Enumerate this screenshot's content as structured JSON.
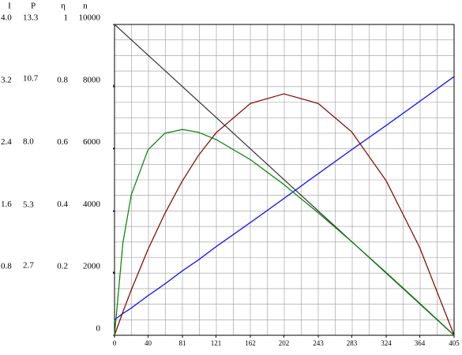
{
  "chart_data": {
    "type": "line",
    "x": [
      0,
      10,
      20,
      40,
      60,
      81,
      100,
      121,
      162,
      202,
      243,
      283,
      324,
      364,
      405
    ],
    "xlim": [
      0,
      405
    ],
    "xticks": [
      0,
      40,
      81,
      121,
      162,
      202,
      243,
      283,
      324,
      364,
      405
    ],
    "grid": true,
    "y_axes": [
      {
        "label": "I",
        "ylim": [
          0,
          4
        ],
        "yticks": [
          0.8,
          1.6,
          2.4,
          3.2,
          {
            "value": 4,
            "label": "4.0"
          }
        ]
      },
      {
        "label": "P",
        "ylim": [
          0,
          13.3
        ],
        "yticks": [
          2.7,
          5.3,
          {
            "value": 8,
            "label": "8.0"
          },
          10.7,
          13.3
        ]
      },
      {
        "label": "η",
        "ylim": [
          0,
          1
        ],
        "yticks": [
          0.2,
          0.4,
          0.6,
          0.8,
          1
        ]
      },
      {
        "label": "n",
        "ylim": [
          0,
          10000
        ],
        "yticks": [
          0,
          2000,
          4000,
          6000,
          8000,
          10000
        ]
      }
    ],
    "series": [
      {
        "axis": "n",
        "color": "#333333",
        "values": [
          10000,
          9753,
          9506,
          9012,
          8519,
          8000,
          7531,
          7012,
          6000,
          5012,
          4000,
          3012,
          2000,
          1012,
          0
        ]
      },
      {
        "axis": "I",
        "color": "#0000ff",
        "values": [
          0.2,
          0.28,
          0.35,
          0.51,
          0.66,
          0.83,
          0.97,
          1.14,
          1.45,
          1.76,
          2.08,
          2.39,
          2.7,
          3.01,
          3.33
        ]
      },
      {
        "axis": "P",
        "color": "#800000",
        "values": [
          0,
          1.0,
          1.94,
          3.68,
          5.21,
          6.61,
          7.69,
          8.66,
          9.92,
          10.33,
          9.92,
          8.7,
          6.61,
          3.75,
          0
        ]
      },
      {
        "axis": "η",
        "color": "#008000",
        "values": [
          0,
          0.297,
          0.452,
          0.597,
          0.65,
          0.662,
          0.653,
          0.63,
          0.565,
          0.485,
          0.394,
          0.301,
          0.202,
          0.103,
          0
        ]
      }
    ]
  }
}
